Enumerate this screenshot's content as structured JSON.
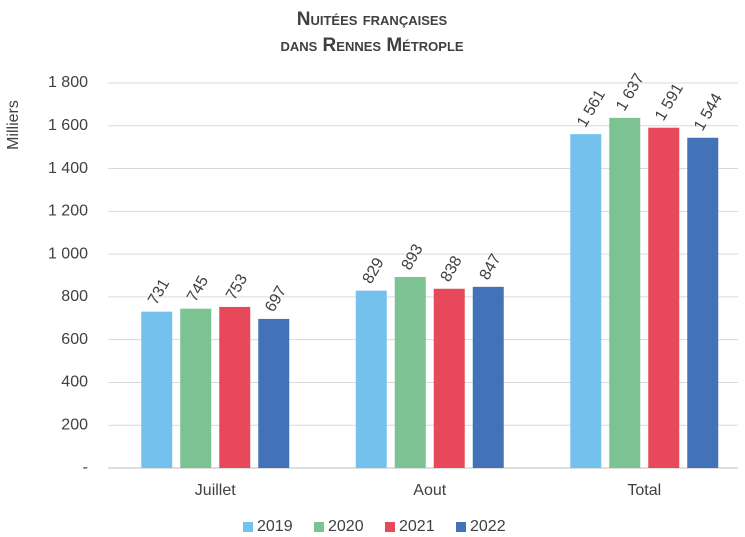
{
  "chart_data": {
    "type": "bar",
    "title": [
      "Nuitées françaises",
      "dans Rennes Métrople"
    ],
    "y_label": "Milliers",
    "categories": [
      "Juillet",
      "Aout",
      "Total"
    ],
    "series": [
      {
        "name": "2019",
        "color": "#75c1ee",
        "values": [
          731,
          829,
          1561
        ],
        "value_labels": [
          "731",
          "829",
          "1 561"
        ]
      },
      {
        "name": "2020",
        "color": "#7dc293",
        "values": [
          745,
          893,
          1637
        ],
        "value_labels": [
          "745",
          "893",
          "1 637"
        ]
      },
      {
        "name": "2021",
        "color": "#e8495a",
        "values": [
          753,
          838,
          1591
        ],
        "value_labels": [
          "753",
          "838",
          "1 591"
        ]
      },
      {
        "name": "2022",
        "color": "#4472b8",
        "values": [
          697,
          847,
          1544
        ],
        "value_labels": [
          "697",
          "847",
          "1 544"
        ]
      }
    ],
    "ylim": [
      0,
      1800
    ],
    "yticks": [
      {
        "value": 0,
        "label": "-"
      },
      200,
      400,
      600,
      800,
      {
        "value": 1000,
        "label": "1 000"
      },
      {
        "value": 1200,
        "label": "1 200"
      },
      {
        "value": 1400,
        "label": "1 400"
      },
      {
        "value": 1600,
        "label": "1 600"
      },
      {
        "value": 1800,
        "label": "1 800"
      }
    ],
    "grid": true,
    "legend": "bottom"
  }
}
